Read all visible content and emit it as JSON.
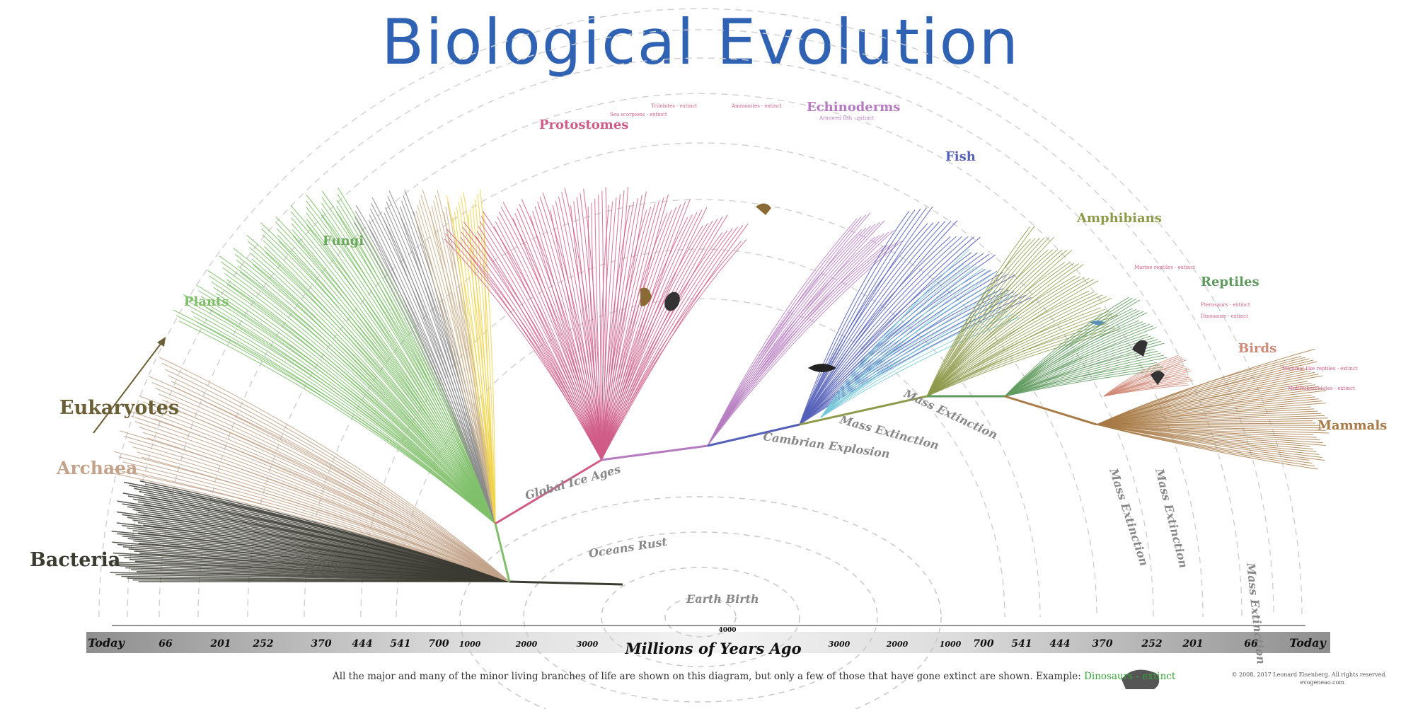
{
  "title": "Biological Evolution",
  "colors": {
    "title": "#2f62b3",
    "bacteria": "#3b3b32",
    "archaea": "#c2a38a",
    "eukaryotes": "#6b5f35",
    "plants": "#7fbf6a",
    "fungi_grey": "#8a8a8a",
    "tan": "#c9b08c",
    "yellow": "#f0d44a",
    "protostomes": "#cf5c86",
    "echinoderms": "#b57ac0",
    "fish": "#5560b8",
    "cyan": "#74c8d8",
    "amphibians": "#8e9a4a",
    "reptiles": "#5e9a5e",
    "birds": "#d08a78",
    "mammals": "#a87a45",
    "era": "#9a9a9a",
    "axis_text": "#111111"
  },
  "groups": {
    "bacteria": "Bacteria",
    "archaea": "Archaea",
    "eukaryotes": "Eukaryotes",
    "plants": "Plants",
    "fungi": "Fungi",
    "protostomes": "Protostomes",
    "echinoderms": "Echinoderms",
    "fish": "Fish",
    "amphibians": "Amphibians",
    "reptiles": "Reptiles",
    "birds": "Birds",
    "mammals": "Mammals"
  },
  "events": {
    "global_ice_ages": "Global Ice Ages",
    "oceans_rust": "Oceans Rust",
    "earth_birth": "Earth Birth",
    "cambrian_explosion": "Cambrian Explosion",
    "mass_extinction": "Mass Extinction"
  },
  "extinct_notes": {
    "trilobites": "Trilobites - extinct",
    "sea_scorpions": "Sea scorpions - extinct",
    "ammonites": "Ammonites - extinct",
    "armored_fish": "Armored fish - extinct",
    "marine_reptiles": "Marine reptiles - extinct",
    "pterosaurs": "Pterosaurs - extinct",
    "dinosaurs": "Dinosaurs - extinct",
    "mammal_like_reptiles": "Mammal-like reptiles - extinct",
    "multituberculates": "Multituberculates - extinct"
  },
  "axis": {
    "title": "Millions of Years Ago",
    "center_value": "4000",
    "left_ticks": [
      "Today",
      "66",
      "201",
      "252",
      "370",
      "444",
      "541",
      "700",
      "1000",
      "2000",
      "3000"
    ],
    "right_ticks": [
      "3000",
      "2000",
      "1000",
      "700",
      "541",
      "444",
      "370",
      "252",
      "201",
      "66",
      "Today"
    ]
  },
  "caption": {
    "text": "All the major and many of the minor living branches of life are shown on this diagram, but only a few of those that have gone extinct are shown. Example: ",
    "highlight": "Dinosaurs - extinct"
  },
  "copyright": {
    "line1": "© 2008, 2017 Leonard Eisenberg. All rights reserved.",
    "line2": "evogeneao.com"
  }
}
